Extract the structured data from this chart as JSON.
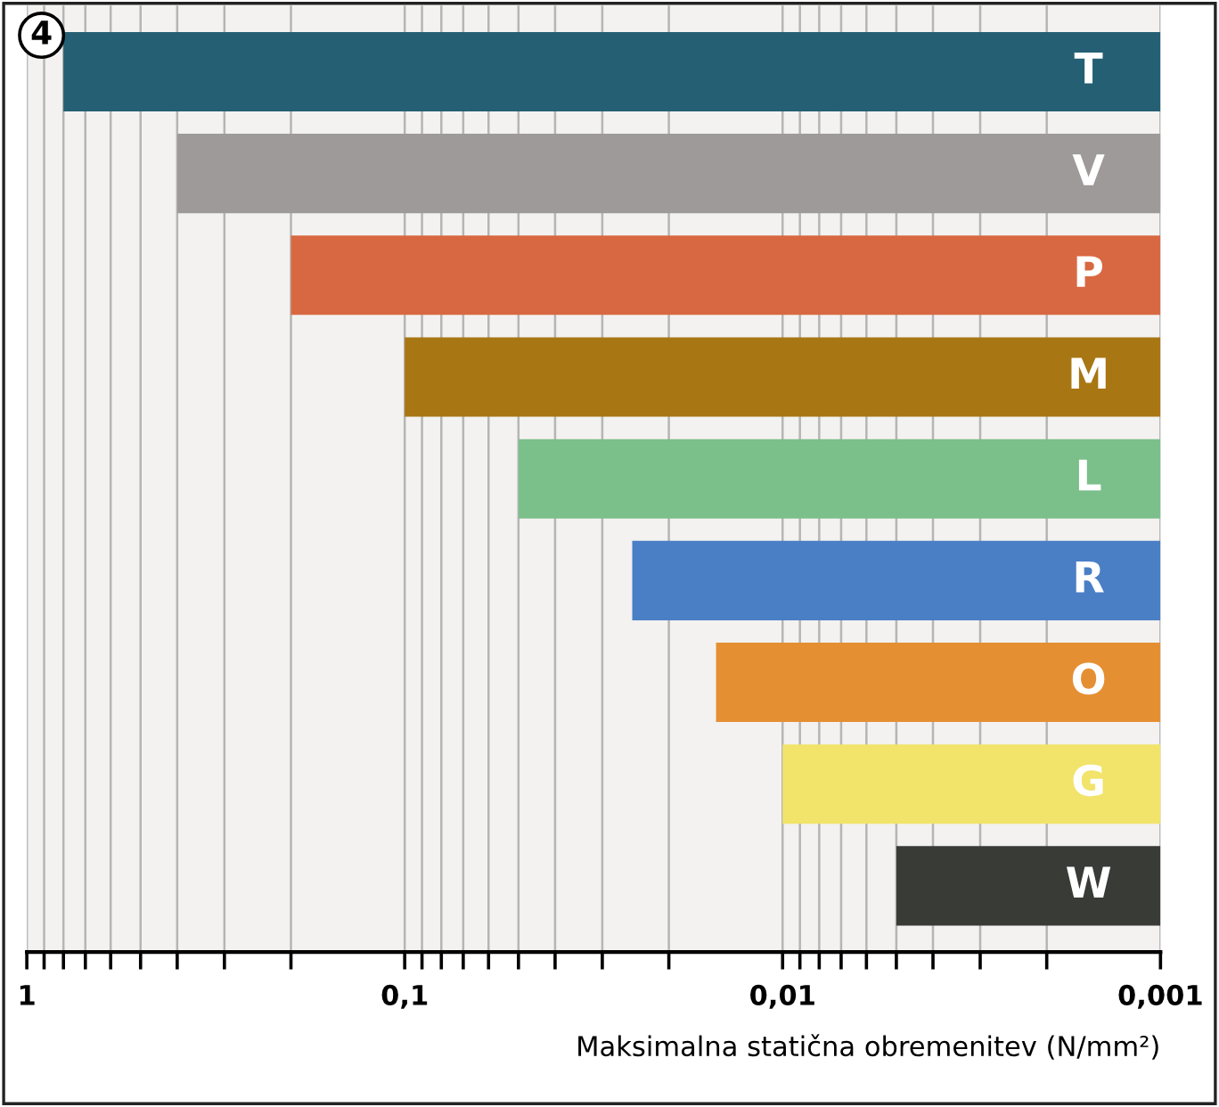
{
  "chart_data": {
    "type": "bar",
    "orientation": "horizontal",
    "log": "x",
    "xlabel": "Maksimalna statična obremenitev (N/mm²)",
    "categories": [
      "T",
      "V",
      "P",
      "M",
      "L",
      "R",
      "O",
      "G",
      "W"
    ],
    "values": [
      0.8,
      0.4,
      0.2,
      0.1,
      0.05,
      0.025,
      0.015,
      0.01,
      0.005
    ],
    "colors": [
      "#255f73",
      "#9e9a9a",
      "#d86842",
      "#a87613",
      "#7bbf8a",
      "#4a7fc6",
      "#e58f33",
      "#f2e36a",
      "#383b36"
    ],
    "xlim": [
      1,
      0.001
    ],
    "xticks": [
      {
        "value": 1,
        "label": "1"
      },
      {
        "value": 0.9,
        "label": null
      },
      {
        "value": 0.8,
        "label": null
      },
      {
        "value": 0.7,
        "label": null
      },
      {
        "value": 0.6,
        "label": null
      },
      {
        "value": 0.5,
        "label": null
      },
      {
        "value": 0.4,
        "label": null
      },
      {
        "value": 0.3,
        "label": null
      },
      {
        "value": 0.2,
        "label": null
      },
      {
        "value": 0.1,
        "label": "0,1"
      },
      {
        "value": 0.09,
        "label": null
      },
      {
        "value": 0.08,
        "label": null
      },
      {
        "value": 0.07,
        "label": null
      },
      {
        "value": 0.06,
        "label": null
      },
      {
        "value": 0.05,
        "label": null
      },
      {
        "value": 0.04,
        "label": null
      },
      {
        "value": 0.03,
        "label": null
      },
      {
        "value": 0.02,
        "label": null
      },
      {
        "value": 0.01,
        "label": "0,01"
      },
      {
        "value": 0.009,
        "label": null
      },
      {
        "value": 0.008,
        "label": null
      },
      {
        "value": 0.007,
        "label": null
      },
      {
        "value": 0.006,
        "label": null
      },
      {
        "value": 0.005,
        "label": null
      },
      {
        "value": 0.004,
        "label": null
      },
      {
        "value": 0.003,
        "label": null
      },
      {
        "value": 0.002,
        "label": null
      },
      {
        "value": 0.001,
        "label": "0,001"
      }
    ],
    "grid": "x",
    "tick_labels": "x",
    "annotations": [
      "4"
    ]
  }
}
